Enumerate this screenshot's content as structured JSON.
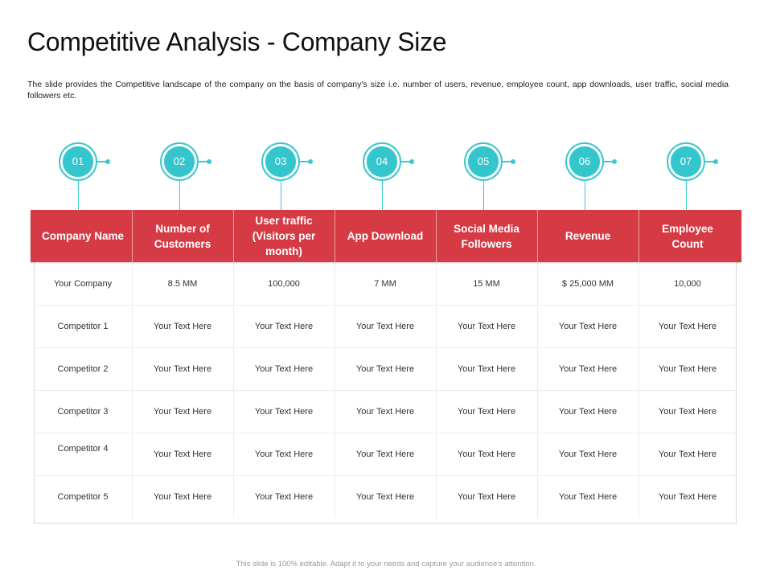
{
  "slide": {
    "title": "Competitive Analysis - Company Size",
    "description": "The slide provides the Competitive landscape of the company on the basis of company's size i.e. number of users, revenue, employee count, app downloads, user traffic, social media followers etc.",
    "footer": "This slide is 100% editable. Adapt it to your needs and capture your audience's attention."
  },
  "markers": [
    "01",
    "02",
    "03",
    "04",
    "05",
    "06",
    "07"
  ],
  "colors": {
    "header_red": "#d63b45",
    "marker_teal": "#33c6cc"
  },
  "table": {
    "headers": [
      "Company Name",
      "Number of Customers",
      "User traffic (Visitors per month)",
      "App Download",
      "Social Media Followers",
      "Revenue",
      "Employee Count"
    ],
    "rows": [
      [
        "Your Company",
        "8.5 MM",
        "100,000",
        "7 MM",
        "15 MM",
        "$ 25,000 MM",
        "10,000"
      ],
      [
        "Competitor 1",
        "Your Text Here",
        "Your Text Here",
        "Your Text Here",
        "Your Text Here",
        "Your Text Here",
        "Your Text Here"
      ],
      [
        "Competitor 2",
        "Your Text Here",
        "Your Text Here",
        "Your Text Here",
        "Your Text Here",
        "Your Text Here",
        "Your Text Here"
      ],
      [
        "Competitor 3",
        "Your Text Here",
        "Your Text Here",
        "Your Text Here",
        "Your Text Here",
        "Your Text Here",
        "Your Text Here"
      ],
      [
        "Competitor 4",
        "Your Text Here",
        "Your Text Here",
        "Your Text Here",
        "Your Text Here",
        "Your Text Here",
        "Your Text Here"
      ],
      [
        "Competitor 5",
        "Your Text Here",
        "Your Text Here",
        "Your Text Here",
        "Your Text Here",
        "Your Text Here",
        "Your Text Here"
      ]
    ]
  }
}
